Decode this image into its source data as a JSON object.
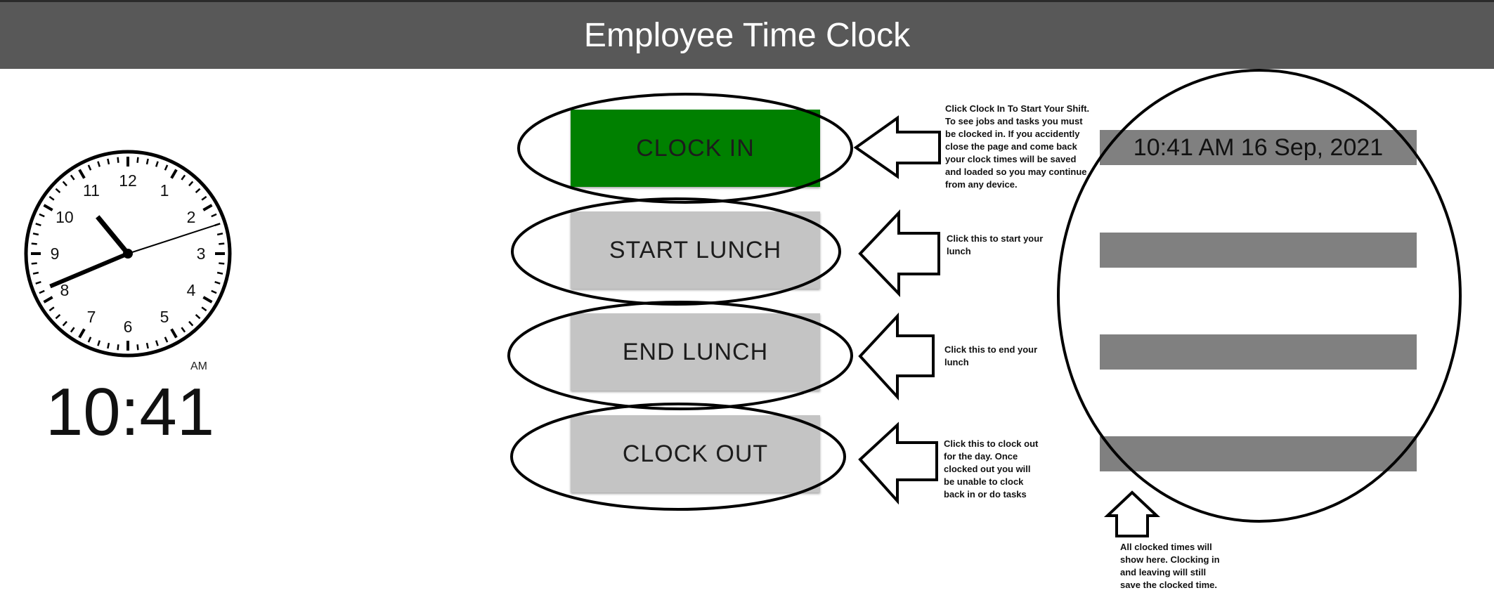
{
  "header": {
    "title": "Employee Time Clock"
  },
  "clock": {
    "hour_numerals": [
      "12",
      "1",
      "2",
      "3",
      "4",
      "5",
      "6",
      "7",
      "8",
      "9",
      "10",
      "11"
    ],
    "time_hours": 10,
    "time_minutes": 41,
    "time_seconds": 12,
    "ampm": "AM",
    "digital_time": "10:41"
  },
  "buttons": {
    "clock_in": "CLOCK IN",
    "start_lunch": "START LUNCH",
    "end_lunch": "END LUNCH",
    "clock_out": "CLOCK OUT"
  },
  "clocked_times": [
    "10:41 AM 16 Sep, 2021",
    "",
    "",
    ""
  ],
  "notes": {
    "clock_in": "Click Clock In To Start Your Shift.\nTo see jobs and tasks you must\nbe clocked in. If you accidently\nclose the page and come back\nyour clock times will be saved\nand loaded so you may continue\nfrom any device.",
    "start_lunch": "Click this to start your\nlunch",
    "end_lunch": "Click this to end your\nlunch",
    "clock_out": "Click this to clock out\nfor the day. Once\nclocked out you will\nbe unable to clock\nback in or do tasks",
    "times": "All clocked times will\nshow here. Clocking in\nand leaving will still\nsave the clocked time."
  },
  "colors": {
    "header_bg": "#585858",
    "clock_in_active": "#008000",
    "button_inactive": "#c4c4c4",
    "time_bar": "#808080"
  }
}
